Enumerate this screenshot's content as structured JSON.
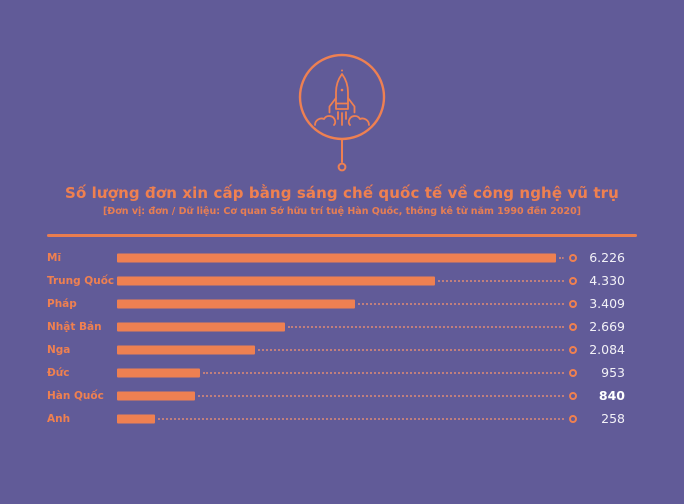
{
  "page": {
    "background_color": "#615b98",
    "accent_color": "#ee8052",
    "value_text_color": "#f2f1f7",
    "emblem": "rocket-launch-in-circle"
  },
  "chart_data": {
    "type": "bar",
    "orientation": "horizontal",
    "title": "Số lượng đơn xin cấp bằng sáng chế quốc tế về công nghệ vũ trụ",
    "subtitle": "[Đơn vị: đơn / Dữ liệu: Cơ quan Sở hữu trí tuệ Hàn Quốc, thống kê từ năm 1990 đến 2020]",
    "unit": "đơn",
    "source": "Cơ quan Sở hữu trí tuệ Hàn Quốc",
    "period": "1990 đến 2020",
    "grid": false,
    "legend": false,
    "xlim": [
      0,
      6470
    ],
    "highlighted_category": "Hàn Quốc",
    "categories": [
      "Mĩ",
      "Trung Quốc",
      "Pháp",
      "Nhật Bản",
      "Nga",
      "Đức",
      "Hàn Quốc",
      "Anh"
    ],
    "values": [
      6226,
      4330,
      3409,
      2669,
      2084,
      953,
      840,
      258
    ],
    "rows": [
      {
        "label": "Mĩ",
        "value": 6226,
        "value_label": "6.226",
        "bar_pct": 96.2,
        "bold": false
      },
      {
        "label": "Trung Quốc",
        "value": 4330,
        "value_label": "4.330",
        "bar_pct": 69.7,
        "bold": false
      },
      {
        "label": "Pháp",
        "value": 3409,
        "value_label": "3.409",
        "bar_pct": 52.2,
        "bold": false
      },
      {
        "label": "Nhật Bản",
        "value": 2669,
        "value_label": "2.669",
        "bar_pct": 36.8,
        "bold": false
      },
      {
        "label": "Nga",
        "value": 2084,
        "value_label": "2.084",
        "bar_pct": 30.3,
        "bold": false
      },
      {
        "label": "Đức",
        "value": 953,
        "value_label": "953",
        "bar_pct": 18.1,
        "bold": false
      },
      {
        "label": "Hàn Quốc",
        "value": 840,
        "value_label": "840",
        "bar_pct": 17.1,
        "bold": true
      },
      {
        "label": "Anh",
        "value": 258,
        "value_label": "258",
        "bar_pct": 8.3,
        "bold": false
      }
    ]
  }
}
